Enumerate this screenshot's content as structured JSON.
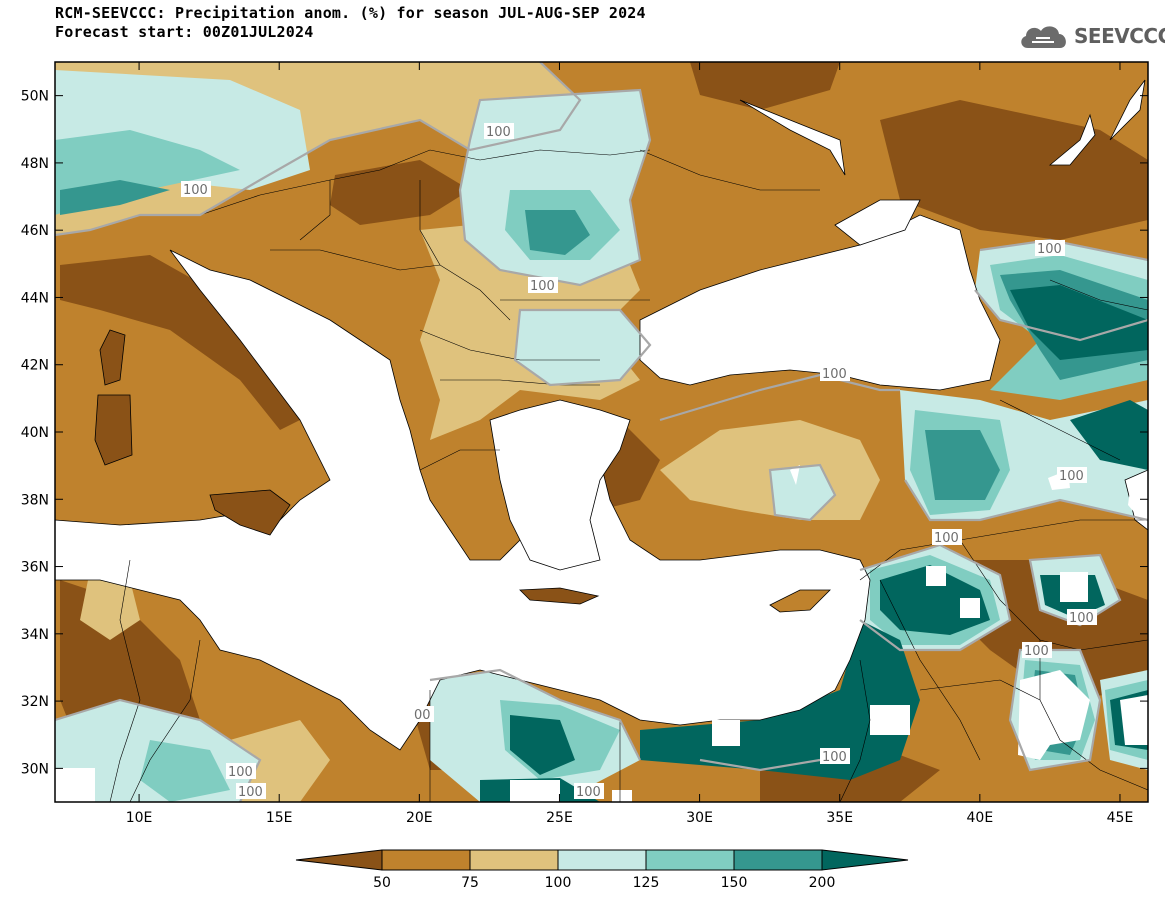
{
  "header": {
    "title_line1": "RCM-SEEVCCC: Precipitation anom. (%) for season JUL-AUG-SEP 2024",
    "title_line2": "Forecast start: 00Z01JUL2024"
  },
  "logo": {
    "text": "SEEVCCC",
    "icon": "cloud-icon"
  },
  "map": {
    "lon_range": [
      7,
      46
    ],
    "lat_range": [
      29,
      51
    ],
    "x_ticks": [
      "10E",
      "15E",
      "20E",
      "25E",
      "30E",
      "35E",
      "40E",
      "45E"
    ],
    "y_ticks": [
      "50N",
      "48N",
      "46N",
      "44N",
      "42N",
      "40N",
      "38N",
      "36N",
      "34N",
      "32N",
      "30N"
    ],
    "contour_labels": [
      "100",
      "100",
      "100",
      "100",
      "100",
      "100",
      "100",
      "100",
      "100",
      "100",
      "100",
      "100",
      "00"
    ]
  },
  "colorbar": {
    "colors": [
      "#8a5217",
      "#bf822d",
      "#dfc27d",
      "#c7eae5",
      "#80cdc1",
      "#35978f",
      "#01665e"
    ],
    "labels": [
      "50",
      "75",
      "100",
      "125",
      "150",
      "200"
    ]
  }
}
